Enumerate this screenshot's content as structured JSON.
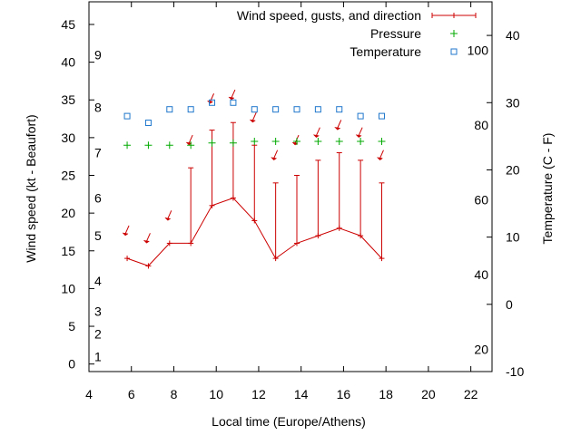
{
  "chart_data": {
    "type": "line",
    "xlabel": "Local time (Europe/Athens)",
    "ylabel": "Wind speed (kt - Beaufort)",
    "y2label": "Temperature (C - F)",
    "xlim": [
      4,
      23
    ],
    "ylim": [
      -1,
      48
    ],
    "y2lim": [
      -10,
      45
    ],
    "x_ticks": [
      4,
      6,
      8,
      10,
      12,
      14,
      16,
      18,
      20,
      22
    ],
    "y_ticks": [
      0,
      5,
      10,
      15,
      20,
      25,
      30,
      35,
      40,
      45
    ],
    "y2_celsius_ticks": [
      -10,
      0,
      10,
      20,
      30,
      40
    ],
    "fahrenheit_ticks": [
      {
        "label": "20",
        "celsius": -6.67
      },
      {
        "label": "40",
        "celsius": 4.44
      },
      {
        "label": "60",
        "celsius": 15.56
      },
      {
        "label": "80",
        "celsius": 26.67
      },
      {
        "label": "100",
        "celsius": 37.78
      }
    ],
    "beaufort_labels": [
      {
        "label": "1",
        "knots": 1
      },
      {
        "label": "2",
        "knots": 4
      },
      {
        "label": "3",
        "knots": 7
      },
      {
        "label": "4",
        "knots": 11
      },
      {
        "label": "5",
        "knots": 17
      },
      {
        "label": "6",
        "knots": 22
      },
      {
        "label": "7",
        "knots": 28
      },
      {
        "label": "8",
        "knots": 34
      },
      {
        "label": "9",
        "knots": 41
      }
    ],
    "legend_position": "top-right",
    "legend": [
      {
        "label": "Wind speed, gusts, and direction",
        "color": "#cc0000",
        "style": "errorbar"
      },
      {
        "label": "Pressure",
        "color": "#00aa00",
        "style": "plus"
      },
      {
        "label": "Temperature",
        "color": "#1f77cc",
        "style": "square"
      }
    ],
    "series": [
      {
        "name": "Wind speed, gusts, and direction",
        "x": [
          5.8,
          6.8,
          7.8,
          8.8,
          9.8,
          10.8,
          11.8,
          12.8,
          13.8,
          14.8,
          15.8,
          16.8,
          17.8
        ],
        "speed": [
          14,
          13,
          16,
          16,
          21,
          22,
          19,
          14,
          16,
          17,
          18,
          17,
          14
        ],
        "gust": [
          14,
          13,
          16,
          26,
          31,
          32,
          29,
          24,
          25,
          27,
          28,
          27,
          24
        ],
        "direction_arrow_knots": [
          17.5,
          16.5,
          19.5,
          29.5,
          35,
          35.5,
          32.5,
          27.5,
          29.5,
          30.5,
          31.5,
          30.5,
          27.5
        ]
      },
      {
        "name": "Pressure",
        "x": [
          5.8,
          6.8,
          7.8,
          8.8,
          9.8,
          10.8,
          11.8,
          12.8,
          13.8,
          14.8,
          15.8,
          16.8,
          17.8
        ],
        "y_knots_axis": [
          29,
          29,
          29,
          29,
          29.3,
          29.3,
          29.5,
          29.5,
          29.5,
          29.5,
          29.5,
          29.5,
          29.5
        ]
      },
      {
        "name": "Temperature",
        "x": [
          5.8,
          6.8,
          7.8,
          8.8,
          9.8,
          10.8,
          11.8,
          12.8,
          13.8,
          14.8,
          15.8,
          16.8,
          17.8
        ],
        "celsius": [
          28,
          27,
          29,
          29,
          30,
          30,
          29,
          29,
          29,
          29,
          29,
          28,
          28
        ]
      }
    ]
  },
  "colors": {
    "wind": "#cc0000",
    "pressure": "#00aa00",
    "temperature": "#1f77cc",
    "axis": "#000000"
  }
}
